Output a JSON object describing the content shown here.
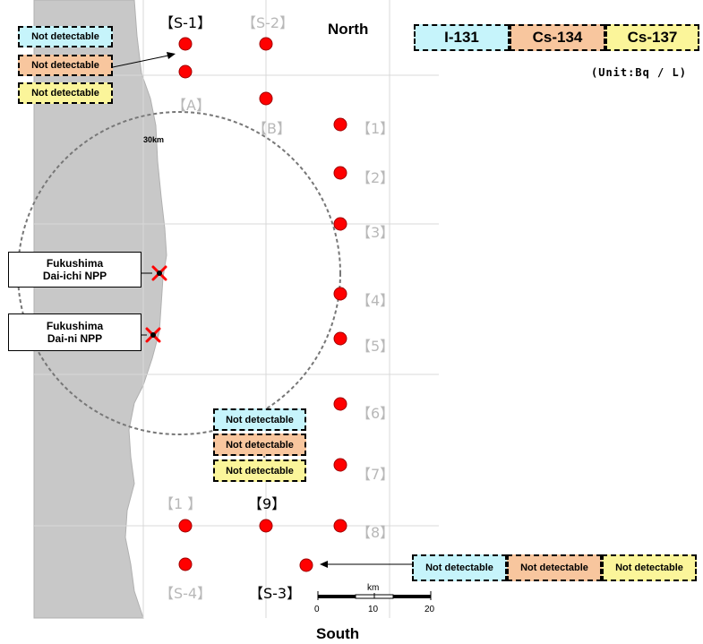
{
  "title": "",
  "legend": [
    {
      "label": "I-131",
      "color": "#c6f4fb"
    },
    {
      "label": "Cs-134",
      "color": "#f8c69e"
    },
    {
      "label": "Cs-137",
      "color": "#fbf59a"
    }
  ],
  "unit": "(Unit:Bq / L)",
  "directions": {
    "north": "North",
    "south": "South"
  },
  "radius_label": "30km",
  "npps": [
    {
      "line1": "Fukushima",
      "line2": "Dai-ichi NPP"
    },
    {
      "line1": "Fukushima",
      "line2": "Dai-ni NPP"
    }
  ],
  "stations": {
    "s1": "【S-1】",
    "s2": "【S-2】",
    "s3": "【S-3】",
    "s4": "【S-4】",
    "a": "【A】",
    "b": "【B】",
    "p1": "【1】",
    "p2": "【2】",
    "p3": "【3】",
    "p4": "【4】",
    "p5": "【5】",
    "p6": "【6】",
    "p7": "【7】",
    "p8": "【8】",
    "p9": "【9】",
    "p1b": "【1 】"
  },
  "results": {
    "s1": [
      "Not detectable",
      "Not detectable",
      "Not detectable"
    ],
    "p9": [
      "Not detectable",
      "Not detectable",
      "Not detectable"
    ],
    "s3": [
      "Not detectable",
      "Not detectable",
      "Not detectable"
    ]
  },
  "scale": {
    "unit": "km",
    "ticks": [
      "0",
      "10",
      "20"
    ]
  },
  "colors": {
    "marker": "#ff0000",
    "land": "#c8c8c8",
    "npp_mark": "#ff0000"
  }
}
